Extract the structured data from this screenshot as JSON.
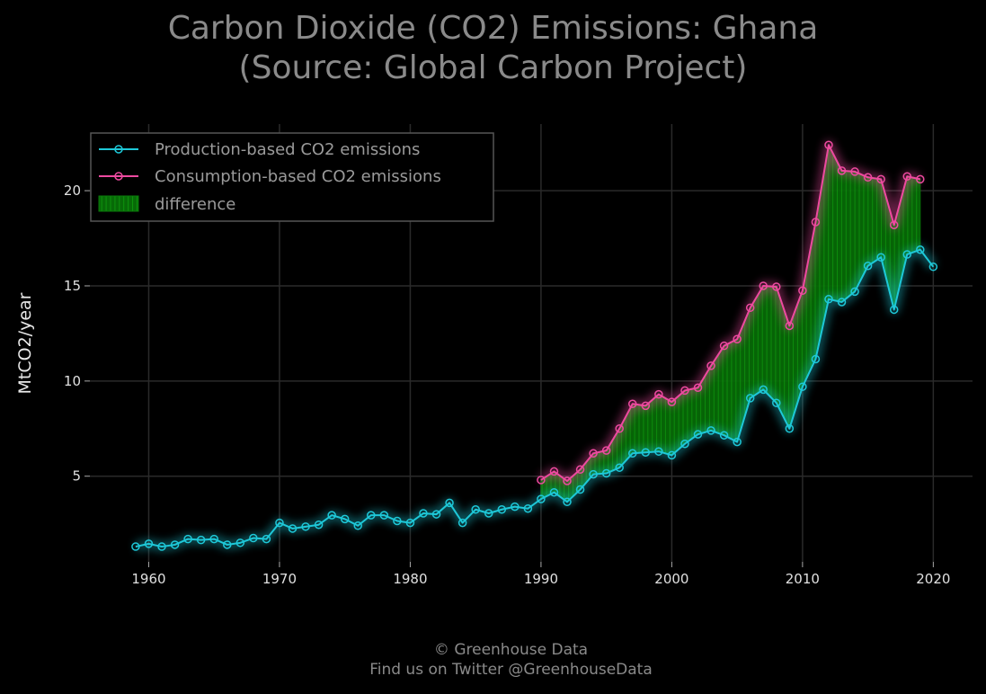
{
  "chart_data": {
    "type": "line",
    "title_line1": "Carbon Dioxide (CO2) Emissions: Ghana",
    "title_line2": "(Source: Global Carbon Project)",
    "xlabel": "",
    "ylabel": "MtCO2/year",
    "xlim": [
      1955.5,
      2023
    ],
    "ylim": [
      0.5,
      23.5
    ],
    "xticks": [
      1960,
      1970,
      1980,
      1990,
      2000,
      2010,
      2020
    ],
    "yticks": [
      5,
      10,
      15,
      20
    ],
    "grid": true,
    "legend_position": "top-left",
    "series": [
      {
        "name": "Production-based CO2 emissions",
        "color": "#1ec8d8",
        "x": [
          1959,
          1960,
          1961,
          1962,
          1963,
          1964,
          1965,
          1966,
          1967,
          1968,
          1969,
          1970,
          1971,
          1972,
          1973,
          1974,
          1975,
          1976,
          1977,
          1978,
          1979,
          1980,
          1981,
          1982,
          1983,
          1984,
          1985,
          1986,
          1987,
          1988,
          1989,
          1990,
          1991,
          1992,
          1993,
          1994,
          1995,
          1996,
          1997,
          1998,
          1999,
          2000,
          2001,
          2002,
          2003,
          2004,
          2005,
          2006,
          2007,
          2008,
          2009,
          2010,
          2011,
          2012,
          2013,
          2014,
          2015,
          2016,
          2017,
          2018,
          2019,
          2020
        ],
        "values": [
          1.3,
          1.45,
          1.3,
          1.4,
          1.7,
          1.65,
          1.7,
          1.4,
          1.5,
          1.75,
          1.7,
          2.55,
          2.25,
          2.35,
          2.45,
          2.95,
          2.75,
          2.4,
          2.95,
          2.95,
          2.65,
          2.55,
          3.05,
          3.0,
          3.6,
          2.55,
          3.25,
          3.05,
          3.25,
          3.4,
          3.3,
          3.8,
          4.15,
          3.65,
          4.3,
          5.1,
          5.15,
          5.45,
          6.2,
          6.25,
          6.3,
          6.1,
          6.7,
          7.2,
          7.4,
          7.15,
          6.8,
          9.1,
          9.55,
          8.85,
          7.5,
          9.7,
          11.15,
          14.3,
          14.15,
          14.7,
          16.05,
          16.5,
          13.75,
          16.65,
          16.9,
          16.0
        ]
      },
      {
        "name": "Consumption-based CO2 emissions",
        "color": "#ee4aa0",
        "x": [
          1990,
          1991,
          1992,
          1993,
          1994,
          1995,
          1996,
          1997,
          1998,
          1999,
          2000,
          2001,
          2002,
          2003,
          2004,
          2005,
          2006,
          2007,
          2008,
          2009,
          2010,
          2011,
          2012,
          2013,
          2014,
          2015,
          2016,
          2017,
          2018,
          2019
        ],
        "values": [
          4.8,
          5.25,
          4.75,
          5.35,
          6.2,
          6.35,
          7.5,
          8.8,
          8.7,
          9.3,
          8.9,
          9.5,
          9.65,
          10.8,
          11.85,
          12.2,
          13.85,
          15.0,
          14.95,
          12.9,
          14.75,
          18.35,
          22.4,
          21.05,
          21.0,
          20.7,
          20.6,
          18.2,
          20.75,
          20.6
        ]
      }
    ],
    "fill_label": "difference",
    "fill_color": "#0a7a0a"
  },
  "footer": {
    "line1": "© Greenhouse Data",
    "line2": "Find us on Twitter @GreenhouseData"
  }
}
